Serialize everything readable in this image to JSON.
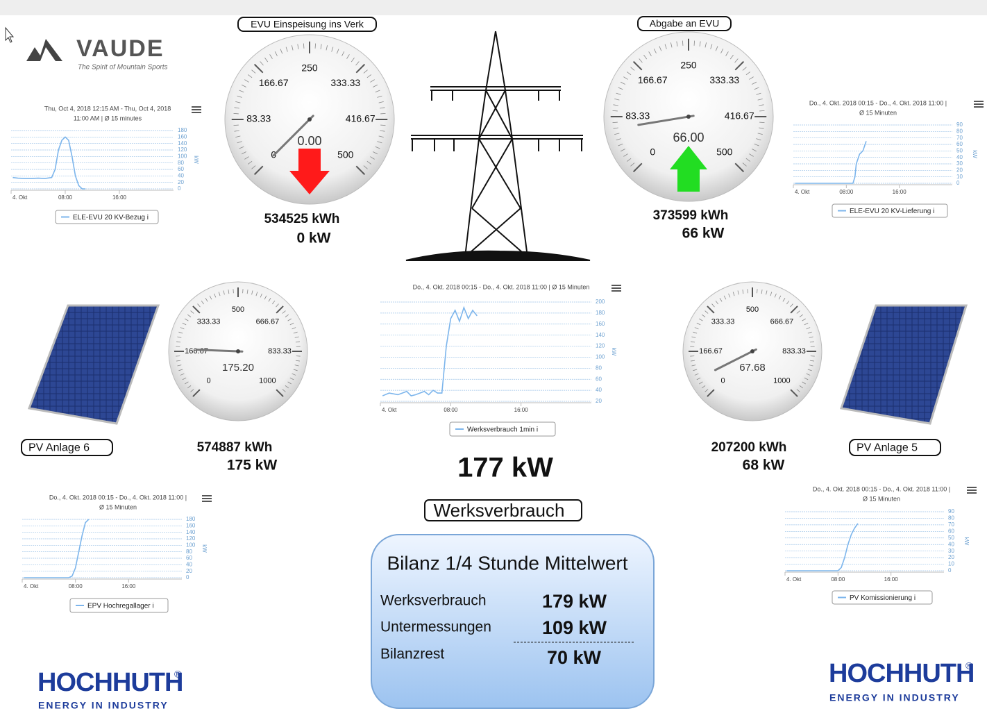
{
  "logo": {
    "brand": "VAUDE",
    "tagline": "The Spirit of Mountain Sports"
  },
  "footer_logo": {
    "brand": "HOCHHUTH",
    "mark": "®",
    "tagline": "ENERGY IN INDUSTRY"
  },
  "gauges": [
    {
      "title": "EVU Einspeisung ins Verk",
      "range": [
        0,
        500
      ],
      "ticks": [
        0,
        83.33,
        166.67,
        250,
        333.33,
        416.67,
        500
      ],
      "value": 0,
      "value_label": "0.00",
      "energy": "534525 kWh",
      "power": "0 kW",
      "arrow": "down",
      "arrow_color": "#ff1a1a"
    },
    {
      "title": "Abgabe an EVU",
      "range": [
        0,
        500
      ],
      "ticks": [
        0,
        83.33,
        166.67,
        250,
        333.33,
        416.67,
        500
      ],
      "value": 66,
      "value_label": "66.00",
      "energy": "373599 kWh",
      "power": "66 kW",
      "arrow": "up",
      "arrow_color": "#22dd22"
    },
    {
      "label": "PV Anlage 6",
      "range": [
        0,
        1000
      ],
      "ticks": [
        0,
        166.67,
        333.33,
        500,
        666.67,
        833.33,
        1000
      ],
      "value": 175.2,
      "value_label": "175.20",
      "energy": "574887 kWh",
      "power": "175 kW"
    },
    {
      "label": "PV Anlage 5",
      "range": [
        0,
        1000
      ],
      "ticks": [
        0,
        166.67,
        333.33,
        500,
        666.67,
        833.33,
        1000
      ],
      "value": 67.68,
      "energy": "207200 kWh",
      "power": "68 kW"
    }
  ],
  "charts": [
    {
      "type": "line",
      "subtitle": [
        "Thu, Oct 4, 2018 12:15 AM - Thu, Oct 4, 2018",
        "11:00 AM | Ø 15 minutes"
      ],
      "y_label": "kW",
      "series_name": "ELE-EVU 20 KV-Bezug i",
      "color": "#7cb5ec",
      "xlim": [
        0,
        24
      ],
      "xticks": [
        {
          "value": 0,
          "label": "4. Okt"
        },
        {
          "value": 8,
          "label": "08:00"
        },
        {
          "value": 16,
          "label": "16:00"
        }
      ],
      "ylim": [
        0,
        180
      ],
      "yticks": [
        0,
        20,
        40,
        60,
        80,
        100,
        120,
        140,
        160,
        180
      ],
      "x": [
        0.25,
        1,
        2,
        3,
        4,
        5,
        6,
        6.5,
        7,
        7.5,
        8,
        8.5,
        9,
        9.5,
        10,
        10.5,
        11
      ],
      "values": [
        35,
        33,
        32,
        32,
        33,
        32,
        35,
        60,
        120,
        150,
        160,
        150,
        100,
        40,
        10,
        0,
        0
      ]
    },
    {
      "type": "line",
      "subtitle": [
        "Do., 4. Okt. 2018 00:15 - Do., 4. Okt. 2018 11:00 |",
        "Ø 15 Minuten"
      ],
      "y_label": "kW",
      "series_name": "ELE-EVU 20 KV-Lieferung i",
      "color": "#7cb5ec",
      "xlim": [
        0,
        24
      ],
      "xticks": [
        {
          "value": 0,
          "label": "4. Okt"
        },
        {
          "value": 8,
          "label": "08:00"
        },
        {
          "value": 16,
          "label": "16:00"
        }
      ],
      "ylim": [
        0,
        90
      ],
      "yticks": [
        0,
        10,
        20,
        30,
        40,
        50,
        60,
        70,
        80,
        90
      ],
      "x": [
        0.25,
        2,
        4,
        6,
        8,
        9,
        9.3,
        9.5,
        10,
        10.5,
        11
      ],
      "values": [
        0,
        0,
        0,
        0,
        0,
        0,
        10,
        30,
        45,
        50,
        65
      ]
    },
    {
      "type": "line",
      "subtitle": [
        "Do., 4. Okt. 2018 00:15 - Do., 4. Okt. 2018 11:00 | Ø 15 Minuten"
      ],
      "y_label": "kW",
      "series_name": "Werksverbrauch 1min i",
      "color": "#7cb5ec",
      "xlim": [
        0,
        24
      ],
      "xticks": [
        {
          "value": 0,
          "label": "4. Okt"
        },
        {
          "value": 8,
          "label": "08:00"
        },
        {
          "value": 16,
          "label": "16:00"
        }
      ],
      "ylim": [
        20,
        200
      ],
      "yticks": [
        20,
        40,
        60,
        80,
        100,
        120,
        140,
        160,
        180,
        200
      ],
      "x": [
        0.25,
        1,
        2,
        3,
        3.5,
        4,
        4.5,
        5,
        5.5,
        6,
        6.5,
        7,
        7.5,
        8,
        8.5,
        9,
        9.5,
        10,
        10.5,
        11
      ],
      "values": [
        30,
        35,
        32,
        38,
        30,
        32,
        35,
        38,
        32,
        40,
        35,
        35,
        120,
        170,
        185,
        165,
        190,
        170,
        185,
        175
      ]
    },
    {
      "type": "line",
      "subtitle": [
        "Do., 4. Okt. 2018 00:15 - Do., 4. Okt. 2018 11:00 |",
        "Ø 15 Minuten"
      ],
      "y_label": "kW",
      "series_name": "EPV Hochregallager i",
      "color": "#7cb5ec",
      "xlim": [
        0,
        24
      ],
      "xticks": [
        {
          "value": 0,
          "label": "4. Okt"
        },
        {
          "value": 8,
          "label": "08:00"
        },
        {
          "value": 16,
          "label": "16:00"
        }
      ],
      "ylim": [
        0,
        180
      ],
      "yticks": [
        0,
        20,
        40,
        60,
        80,
        100,
        120,
        140,
        160,
        180
      ],
      "x": [
        0.25,
        2,
        4,
        6,
        7,
        7.5,
        8,
        8.5,
        9,
        9.5,
        10
      ],
      "values": [
        0,
        0,
        0,
        0,
        0,
        5,
        30,
        80,
        130,
        170,
        180
      ]
    },
    {
      "type": "line",
      "subtitle": [
        "Do., 4. Okt. 2018 00:15 - Do., 4. Okt. 2018 11:00 |",
        "Ø 15 Minuten"
      ],
      "y_label": "kW",
      "series_name": "PV Komissionierung i",
      "color": "#7cb5ec",
      "xlim": [
        0,
        24
      ],
      "xticks": [
        {
          "value": 0,
          "label": "4. Okt"
        },
        {
          "value": 8,
          "label": "08:00"
        },
        {
          "value": 16,
          "label": "16:00"
        }
      ],
      "ylim": [
        0,
        90
      ],
      "yticks": [
        0,
        10,
        20,
        30,
        40,
        50,
        60,
        70,
        80,
        90
      ],
      "x": [
        0.25,
        2,
        4,
        6,
        8,
        8.5,
        9,
        9.5,
        10,
        10.5,
        11
      ],
      "values": [
        0,
        0,
        0,
        0,
        0,
        5,
        20,
        40,
        55,
        65,
        72
      ]
    }
  ],
  "total": {
    "value": "177 kW",
    "label": "Werksverbrauch"
  },
  "balance": {
    "title": "Bilanz 1/4 Stunde Mittelwert",
    "rows": [
      {
        "label": "Werksverbrauch",
        "value": "179 kW"
      },
      {
        "label": "Untermessungen",
        "value": "109 kW"
      },
      {
        "label": "Bilanzrest",
        "value": "70 kW"
      }
    ]
  }
}
